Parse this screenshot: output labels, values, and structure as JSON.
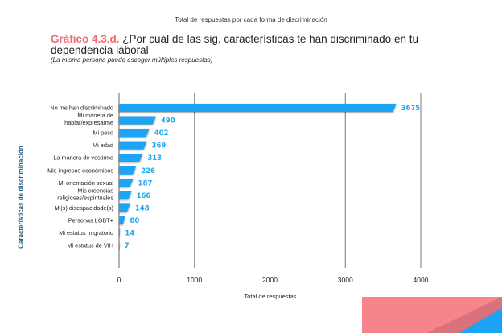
{
  "chart_data": {
    "type": "bar",
    "orientation": "horizontal",
    "title": "Total de respuestas por cada forma de discriminación",
    "heading_label": "Gráfico 4.3.d.",
    "heading_text": "¿Por cuál de las sig. características te han discriminado en tu dependencia laboral",
    "subtitle": "(La misma persona puede escoger múltiples respuestas)",
    "xlabel": "Total de respuestas",
    "ylabel": "Características de discriminación",
    "xlim": [
      0,
      4000
    ],
    "xticks": [
      "0",
      "1000",
      "2000",
      "3000",
      "4000"
    ],
    "xtick_values": [
      0,
      1000,
      2000,
      3000,
      4000
    ],
    "grid": true,
    "categories": [
      [
        "No me han discriminado"
      ],
      [
        "Mi manera de",
        "hablar/expresarme"
      ],
      [
        "Mi peso"
      ],
      [
        "Mi edad"
      ],
      [
        "La manera de vestirme"
      ],
      [
        "Mis ingresos económicos"
      ],
      [
        "Mi orientación sexual"
      ],
      [
        "Mis creencias",
        "religiosas/espirituales"
      ],
      [
        "Mi(s) discapacidade(s)"
      ],
      [
        "Personas LGBT+"
      ],
      [
        "Mi estatus migratorio"
      ],
      [
        "Mi estatus de VIH"
      ]
    ],
    "values": [
      3675,
      490,
      402,
      369,
      313,
      226,
      187,
      166,
      148,
      80,
      14,
      7
    ],
    "value_labels": [
      "3675",
      "490",
      "402",
      "369",
      "313",
      "226",
      "187",
      "166",
      "148",
      "80",
      "14",
      "7"
    ],
    "colors": {
      "bar": "#1ba4f5",
      "value_label": "#1ea6ef",
      "heading_accent": "#f26b72",
      "ylabel": "#24607f",
      "grid": "#555555"
    }
  },
  "decoration": {
    "colors": {
      "pink": "#f8848b",
      "pink_dark": "#d9727a",
      "blue": "#1ba4f5"
    }
  }
}
